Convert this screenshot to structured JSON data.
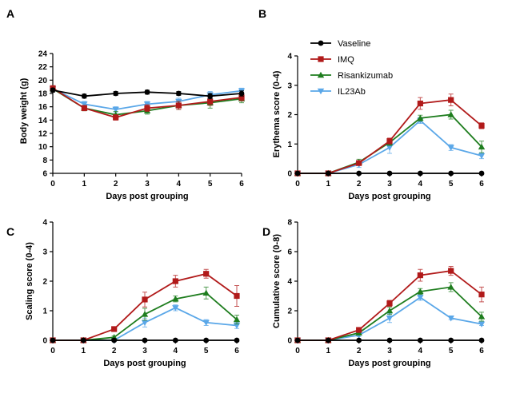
{
  "legend": {
    "placement": "top-right of panel B",
    "items": [
      {
        "name": "Vaseline",
        "color": "#000000",
        "marker": "circle"
      },
      {
        "name": "IMQ",
        "color": "#b11a1a",
        "marker": "square"
      },
      {
        "name": "Risankizumab",
        "color": "#1e7d1e",
        "marker": "triangle-up"
      },
      {
        "name": "IL23Ab",
        "color": "#5aa7e8",
        "marker": "triangle-down"
      }
    ]
  },
  "chart_data": [
    {
      "panel": "A",
      "type": "line",
      "xlabel": "Days post grouping",
      "ylabel": "Body weight (g)",
      "x": [
        0,
        1,
        2,
        3,
        4,
        5,
        6
      ],
      "xlim": [
        0,
        6
      ],
      "ylim": [
        6,
        24
      ],
      "xticks": [
        "0",
        "1",
        "2",
        "3",
        "4",
        "5",
        "6"
      ],
      "yticks": [
        "6",
        "8",
        "10",
        "12",
        "14",
        "16",
        "18",
        "20",
        "22",
        "24"
      ],
      "grid": false,
      "series": [
        {
          "name": "Vaseline",
          "color": "#000000",
          "marker": "circle",
          "values": [
            18.5,
            17.6,
            18.0,
            18.2,
            18.0,
            17.6,
            18.0
          ],
          "errors": [
            0.3,
            0.3,
            0.3,
            0.3,
            0.3,
            0.4,
            0.4
          ]
        },
        {
          "name": "IMQ",
          "color": "#b11a1a",
          "marker": "square",
          "values": [
            18.8,
            15.8,
            14.4,
            15.8,
            16.2,
            16.8,
            17.4
          ],
          "errors": [
            0.3,
            0.4,
            0.4,
            0.5,
            0.6,
            0.6,
            0.5
          ]
        },
        {
          "name": "Risankizumab",
          "color": "#1e7d1e",
          "marker": "triangle-up",
          "values": [
            18.7,
            15.8,
            14.8,
            15.4,
            16.2,
            16.6,
            17.2
          ],
          "errors": [
            0.3,
            0.4,
            0.5,
            0.5,
            0.6,
            0.8,
            0.6
          ]
        },
        {
          "name": "IL23Ab",
          "color": "#5aa7e8",
          "marker": "triangle-down",
          "values": [
            18.7,
            16.4,
            15.6,
            16.4,
            16.8,
            17.8,
            18.4
          ],
          "errors": [
            0.3,
            0.4,
            0.4,
            0.4,
            0.5,
            0.5,
            0.4
          ]
        }
      ]
    },
    {
      "panel": "B",
      "type": "line",
      "xlabel": "Days post grouping",
      "ylabel": "Erythema score (0-4)",
      "x": [
        0,
        1,
        2,
        3,
        4,
        5,
        6
      ],
      "xlim": [
        0,
        6
      ],
      "ylim": [
        0,
        4
      ],
      "xticks": [
        "0",
        "1",
        "2",
        "3",
        "4",
        "5",
        "6"
      ],
      "yticks": [
        "0",
        "1",
        "2",
        "3",
        "4"
      ],
      "grid": false,
      "series": [
        {
          "name": "Vaseline",
          "color": "#000000",
          "marker": "circle",
          "values": [
            0,
            0,
            0,
            0,
            0,
            0,
            0
          ],
          "errors": [
            0,
            0,
            0,
            0,
            0,
            0,
            0
          ]
        },
        {
          "name": "IMQ",
          "color": "#b11a1a",
          "marker": "square",
          "values": [
            0,
            0,
            0.35,
            1.1,
            2.38,
            2.5,
            1.62
          ],
          "errors": [
            0,
            0,
            0.05,
            0.1,
            0.2,
            0.2,
            0.1
          ]
        },
        {
          "name": "Risankizumab",
          "color": "#1e7d1e",
          "marker": "triangle-up",
          "values": [
            0,
            0,
            0.38,
            1.05,
            1.88,
            2.0,
            0.9
          ],
          "errors": [
            0,
            0,
            0.1,
            0.1,
            0.1,
            0.15,
            0.2
          ]
        },
        {
          "name": "IL23Ab",
          "color": "#5aa7e8",
          "marker": "triangle-down",
          "values": [
            0,
            0,
            0.3,
            0.88,
            1.8,
            0.88,
            0.6
          ],
          "errors": [
            0,
            0,
            0.1,
            0.2,
            0.1,
            0.1,
            0.1
          ]
        }
      ]
    },
    {
      "panel": "C",
      "type": "line",
      "xlabel": "Days post grouping",
      "ylabel": "Scaling score (0-4)",
      "x": [
        0,
        1,
        2,
        3,
        4,
        5,
        6
      ],
      "xlim": [
        0,
        6
      ],
      "ylim": [
        0,
        4
      ],
      "xticks": [
        "0",
        "1",
        "2",
        "3",
        "4",
        "5",
        "6"
      ],
      "yticks": [
        "0",
        "1",
        "2",
        "3",
        "4"
      ],
      "grid": false,
      "series": [
        {
          "name": "Vaseline",
          "color": "#000000",
          "marker": "circle",
          "values": [
            0,
            0,
            0,
            0,
            0,
            0,
            0
          ],
          "errors": [
            0,
            0,
            0,
            0,
            0,
            0,
            0
          ]
        },
        {
          "name": "IMQ",
          "color": "#b11a1a",
          "marker": "square",
          "values": [
            0,
            0,
            0.38,
            1.38,
            2.0,
            2.25,
            1.5
          ],
          "errors": [
            0,
            0,
            0.05,
            0.25,
            0.2,
            0.15,
            0.35
          ]
        },
        {
          "name": "Risankizumab",
          "color": "#1e7d1e",
          "marker": "triangle-up",
          "values": [
            0,
            0,
            0.1,
            0.88,
            1.4,
            1.6,
            0.7
          ],
          "errors": [
            0,
            0,
            0.05,
            0.2,
            0.1,
            0.2,
            0.15
          ]
        },
        {
          "name": "IL23Ab",
          "color": "#5aa7e8",
          "marker": "triangle-down",
          "values": [
            0,
            0,
            0,
            0.6,
            1.1,
            0.6,
            0.5
          ],
          "errors": [
            0,
            0,
            0,
            0.15,
            0.1,
            0.1,
            0.1
          ]
        }
      ]
    },
    {
      "panel": "D",
      "type": "line",
      "xlabel": "Days post grouping",
      "ylabel": "Cumulative score (0-8)",
      "x": [
        0,
        1,
        2,
        3,
        4,
        5,
        6
      ],
      "xlim": [
        0,
        6
      ],
      "ylim": [
        0,
        8
      ],
      "xticks": [
        "0",
        "1",
        "2",
        "3",
        "4",
        "5",
        "6"
      ],
      "yticks": [
        "0",
        "2",
        "4",
        "6",
        "8"
      ],
      "grid": false,
      "series": [
        {
          "name": "Vaseline",
          "color": "#000000",
          "marker": "circle",
          "values": [
            0,
            0,
            0,
            0,
            0,
            0,
            0
          ],
          "errors": [
            0,
            0,
            0,
            0,
            0,
            0,
            0
          ]
        },
        {
          "name": "IMQ",
          "color": "#b11a1a",
          "marker": "square",
          "values": [
            0,
            0,
            0.7,
            2.5,
            4.4,
            4.7,
            3.1
          ],
          "errors": [
            0,
            0,
            0.1,
            0.2,
            0.4,
            0.3,
            0.5
          ]
        },
        {
          "name": "Risankizumab",
          "color": "#1e7d1e",
          "marker": "triangle-up",
          "values": [
            0,
            0,
            0.5,
            2.0,
            3.3,
            3.6,
            1.6
          ],
          "errors": [
            0,
            0,
            0.1,
            0.25,
            0.2,
            0.3,
            0.3
          ]
        },
        {
          "name": "IL23Ab",
          "color": "#5aa7e8",
          "marker": "triangle-down",
          "values": [
            0,
            0,
            0.35,
            1.5,
            2.9,
            1.5,
            1.1
          ],
          "errors": [
            0,
            0,
            0.1,
            0.3,
            0.2,
            0.1,
            0.1
          ]
        }
      ]
    }
  ],
  "panel_letters": [
    "A",
    "B",
    "C",
    "D"
  ]
}
